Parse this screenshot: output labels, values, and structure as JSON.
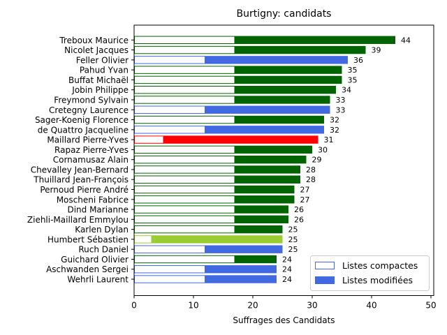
{
  "chart_data": {
    "type": "bar",
    "orientation": "horizontal",
    "title": "Burtigny: candidats",
    "xlabel": "Suffrages des Candidats",
    "ylabel": "",
    "xlim": [
      0,
      50
    ],
    "xticks": [
      0,
      10,
      20,
      30,
      40,
      50
    ],
    "legend": {
      "placement": "lower-right",
      "entries": [
        {
          "label": "Listes compactes",
          "style": "outline",
          "color": "#4169e1"
        },
        {
          "label": "Listes modifiées",
          "style": "filled",
          "color": "#4169e1"
        }
      ]
    },
    "candidates": [
      {
        "name": "Treboux Maurice",
        "compact": 17,
        "total": 44,
        "color": "#006400"
      },
      {
        "name": "Nicolet Jacques",
        "compact": 17,
        "total": 39,
        "color": "#006400"
      },
      {
        "name": "Feller Olivier",
        "compact": 12,
        "total": 36,
        "color": "#4169e1"
      },
      {
        "name": "Pahud Yvan",
        "compact": 17,
        "total": 35,
        "color": "#006400"
      },
      {
        "name": "Buffat Michaël",
        "compact": 17,
        "total": 35,
        "color": "#006400"
      },
      {
        "name": "Jobin Philippe",
        "compact": 17,
        "total": 34,
        "color": "#006400"
      },
      {
        "name": "Freymond Sylvain",
        "compact": 17,
        "total": 33,
        "color": "#006400"
      },
      {
        "name": "Cretegny Laurence",
        "compact": 12,
        "total": 33,
        "color": "#4169e1"
      },
      {
        "name": "Sager-Koenig Florence",
        "compact": 17,
        "total": 32,
        "color": "#006400"
      },
      {
        "name": "de Quattro Jacqueline",
        "compact": 12,
        "total": 32,
        "color": "#4169e1"
      },
      {
        "name": "Maillard Pierre-Yves",
        "compact": 5,
        "total": 31,
        "color": "#ff0000"
      },
      {
        "name": "Rapaz Pierre-Yves",
        "compact": 17,
        "total": 30,
        "color": "#006400"
      },
      {
        "name": "Cornamusaz Alain",
        "compact": 17,
        "total": 29,
        "color": "#006400"
      },
      {
        "name": "Chevalley Jean-Bernard",
        "compact": 17,
        "total": 28,
        "color": "#006400"
      },
      {
        "name": "Thuillard Jean-François",
        "compact": 17,
        "total": 28,
        "color": "#006400"
      },
      {
        "name": "Pernoud Pierre André",
        "compact": 17,
        "total": 27,
        "color": "#006400"
      },
      {
        "name": "Moscheni Fabrice",
        "compact": 17,
        "total": 27,
        "color": "#006400"
      },
      {
        "name": "Dind Marianne",
        "compact": 17,
        "total": 26,
        "color": "#006400"
      },
      {
        "name": "Ziehli-Maillard Emmylou",
        "compact": 17,
        "total": 26,
        "color": "#006400"
      },
      {
        "name": "Karlen Dylan",
        "compact": 17,
        "total": 25,
        "color": "#006400"
      },
      {
        "name": "Humbert Sébastien",
        "compact": 3,
        "total": 25,
        "color": "#9acd32"
      },
      {
        "name": "Ruch Daniel",
        "compact": 12,
        "total": 25,
        "color": "#4169e1"
      },
      {
        "name": "Guichard Olivier",
        "compact": 17,
        "total": 24,
        "color": "#006400"
      },
      {
        "name": "Aschwanden Sergei",
        "compact": 12,
        "total": 24,
        "color": "#4169e1"
      },
      {
        "name": "Wehrli Laurent",
        "compact": 12,
        "total": 24,
        "color": "#4169e1"
      }
    ]
  }
}
